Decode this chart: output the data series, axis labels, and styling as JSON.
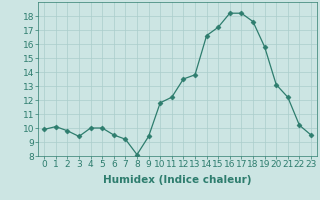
{
  "xlabel": "Humidex (Indice chaleur)",
  "x": [
    0,
    1,
    2,
    3,
    4,
    5,
    6,
    7,
    8,
    9,
    10,
    11,
    12,
    13,
    14,
    15,
    16,
    17,
    18,
    19,
    20,
    21,
    22,
    23
  ],
  "y": [
    9.9,
    10.1,
    9.8,
    9.4,
    10.0,
    10.0,
    9.5,
    9.2,
    8.1,
    9.4,
    11.8,
    12.2,
    13.5,
    13.8,
    16.6,
    17.2,
    18.2,
    18.2,
    17.6,
    15.8,
    13.1,
    12.2,
    10.2,
    9.5
  ],
  "ylim": [
    8,
    19
  ],
  "yticks": [
    8,
    9,
    10,
    11,
    12,
    13,
    14,
    15,
    16,
    17,
    18
  ],
  "line_color": "#2e7d6e",
  "marker": "D",
  "marker_size": 2.5,
  "bg_color": "#cce5e3",
  "grid_color": "#aacecc",
  "axis_color": "#2e7d6e",
  "tick_label_fontsize": 6.5,
  "xlabel_fontsize": 7.5
}
